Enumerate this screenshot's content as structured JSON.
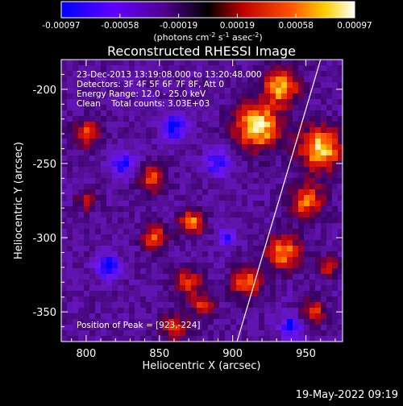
{
  "chart_data": {
    "type": "heatmap",
    "title": "Reconstructed RHESSI Image",
    "xlabel": "Heliocentric X (arcsec)",
    "ylabel": "Heliocentric Y (arcsec)",
    "xlim": [
      783,
      975
    ],
    "ylim": [
      -370,
      -180
    ],
    "x_ticks": [
      800,
      850,
      900,
      950
    ],
    "y_ticks": [
      -200,
      -250,
      -300,
      -350
    ],
    "colorbar": {
      "ticks": [
        "-0.00097",
        "-0.00058",
        "-0.00019",
        "0.00019",
        "0.00058",
        "0.00097"
      ],
      "label_main": "(photons cm",
      "label_sup1": "-2",
      "label_mid1": " s",
      "label_sup2": "-1",
      "label_mid2": " asec",
      "label_sup3": "-2",
      "label_end": ")",
      "colors": [
        "#0000ff",
        "#8000ff",
        "#400070",
        "#000000",
        "#c00000",
        "#ff6000",
        "#ffff00",
        "#ffffff"
      ]
    },
    "info_lines": [
      "23-Dec-2013 13:19:08.000 to 13:20:48.000",
      "Detectors: 3F 4F 5F 6F 7F 8F, Att 0",
      "Energy Range: 12.0 - 25.0 keV",
      "Clean    Total counts: 3.03E+03"
    ],
    "peak_label": "Position of Peak = [923,-224]",
    "limb_line": {
      "x_start": 903,
      "y_start": -370,
      "x_end": 960,
      "y_end": -180
    },
    "hot_spots": [
      {
        "x": 917,
        "y": -225,
        "r": 13,
        "v": 1.0
      },
      {
        "x": 960,
        "y": -240,
        "r": 12,
        "v": 0.95
      },
      {
        "x": 933,
        "y": -198,
        "r": 10,
        "v": 0.85
      },
      {
        "x": 950,
        "y": -275,
        "r": 10,
        "v": 0.7
      },
      {
        "x": 935,
        "y": -310,
        "r": 10,
        "v": 0.75
      },
      {
        "x": 910,
        "y": -330,
        "r": 9,
        "v": 0.7
      },
      {
        "x": 870,
        "y": -330,
        "r": 8,
        "v": 0.6
      },
      {
        "x": 872,
        "y": -290,
        "r": 7,
        "v": 0.8
      },
      {
        "x": 847,
        "y": -300,
        "r": 7,
        "v": 0.7
      },
      {
        "x": 845,
        "y": -260,
        "r": 8,
        "v": 0.6
      },
      {
        "x": 800,
        "y": -230,
        "r": 8,
        "v": 0.6
      },
      {
        "x": 800,
        "y": -275,
        "r": 6,
        "v": 0.45
      },
      {
        "x": 860,
        "y": -360,
        "r": 8,
        "v": 0.55
      },
      {
        "x": 880,
        "y": -345,
        "r": 6,
        "v": 0.6
      },
      {
        "x": 955,
        "y": -350,
        "r": 7,
        "v": 0.6
      },
      {
        "x": 965,
        "y": -320,
        "r": 6,
        "v": 0.5
      }
    ],
    "cold_spots": [
      {
        "x": 815,
        "y": -320,
        "r": 7,
        "v": 0.8
      },
      {
        "x": 825,
        "y": -250,
        "r": 8,
        "v": 0.6
      },
      {
        "x": 860,
        "y": -225,
        "r": 8,
        "v": 0.7
      },
      {
        "x": 890,
        "y": -250,
        "r": 8,
        "v": 0.6
      },
      {
        "x": 940,
        "y": -360,
        "r": 7,
        "v": 0.7
      },
      {
        "x": 895,
        "y": -300,
        "r": 6,
        "v": 0.5
      }
    ]
  },
  "footer": {
    "timestamp": "19-May-2022 09:19"
  }
}
